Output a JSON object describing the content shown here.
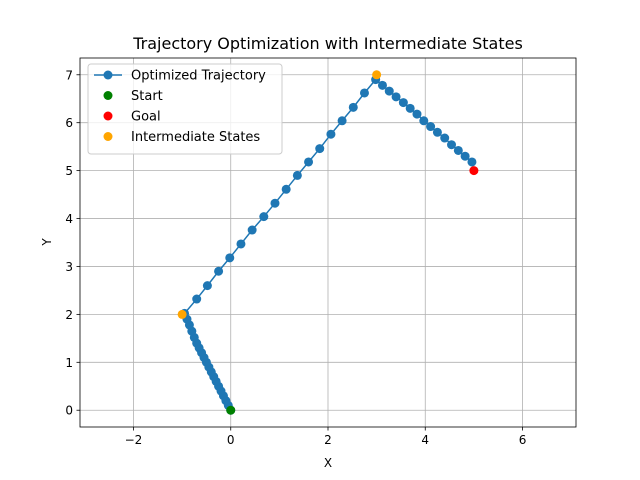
{
  "chart_data": {
    "type": "line",
    "title": "Trajectory Optimization with Intermediate States",
    "xlabel": "X",
    "ylabel": "Y",
    "xlim": [
      -3.1,
      7.1
    ],
    "ylim": [
      -0.35,
      7.35
    ],
    "xticks": [
      -2,
      0,
      2,
      4,
      6
    ],
    "yticks": [
      0,
      1,
      2,
      3,
      4,
      5,
      6,
      7
    ],
    "grid": true,
    "legend_position": "top-left",
    "series": [
      {
        "name": "Optimized Trajectory",
        "kind": "line-markers",
        "color": "#1f77b4",
        "x": [
          0.0,
          -0.05,
          -0.1,
          -0.15,
          -0.2,
          -0.25,
          -0.3,
          -0.35,
          -0.4,
          -0.45,
          -0.5,
          -0.55,
          -0.6,
          -0.65,
          -0.7,
          -0.75,
          -0.8,
          -0.85,
          -0.9,
          -0.95,
          -0.7,
          -0.48,
          -0.25,
          -0.02,
          0.21,
          0.44,
          0.68,
          0.91,
          1.14,
          1.37,
          1.6,
          1.83,
          2.06,
          2.29,
          2.52,
          2.75,
          2.98,
          3.12,
          3.26,
          3.4,
          3.55,
          3.69,
          3.83,
          3.97,
          4.11,
          4.25,
          4.4,
          4.54,
          4.68,
          4.82,
          4.96
        ],
        "y": [
          0.0,
          0.1,
          0.2,
          0.3,
          0.4,
          0.5,
          0.6,
          0.7,
          0.8,
          0.9,
          1.0,
          1.1,
          1.2,
          1.3,
          1.4,
          1.52,
          1.65,
          1.78,
          1.9,
          2.02,
          2.32,
          2.6,
          2.9,
          3.18,
          3.47,
          3.76,
          4.04,
          4.32,
          4.61,
          4.9,
          5.18,
          5.46,
          5.76,
          6.04,
          6.32,
          6.62,
          6.9,
          6.78,
          6.66,
          6.54,
          6.42,
          6.3,
          6.18,
          6.04,
          5.92,
          5.8,
          5.68,
          5.54,
          5.42,
          5.3,
          5.18
        ]
      },
      {
        "name": "Start",
        "kind": "scatter",
        "color": "#008000",
        "x": [
          0
        ],
        "y": [
          0
        ]
      },
      {
        "name": "Goal",
        "kind": "scatter",
        "color": "#ff0000",
        "x": [
          5
        ],
        "y": [
          5
        ]
      },
      {
        "name": "Intermediate States",
        "kind": "scatter",
        "color": "#ffa500",
        "x": [
          -1,
          3
        ],
        "y": [
          2,
          7
        ]
      }
    ]
  }
}
